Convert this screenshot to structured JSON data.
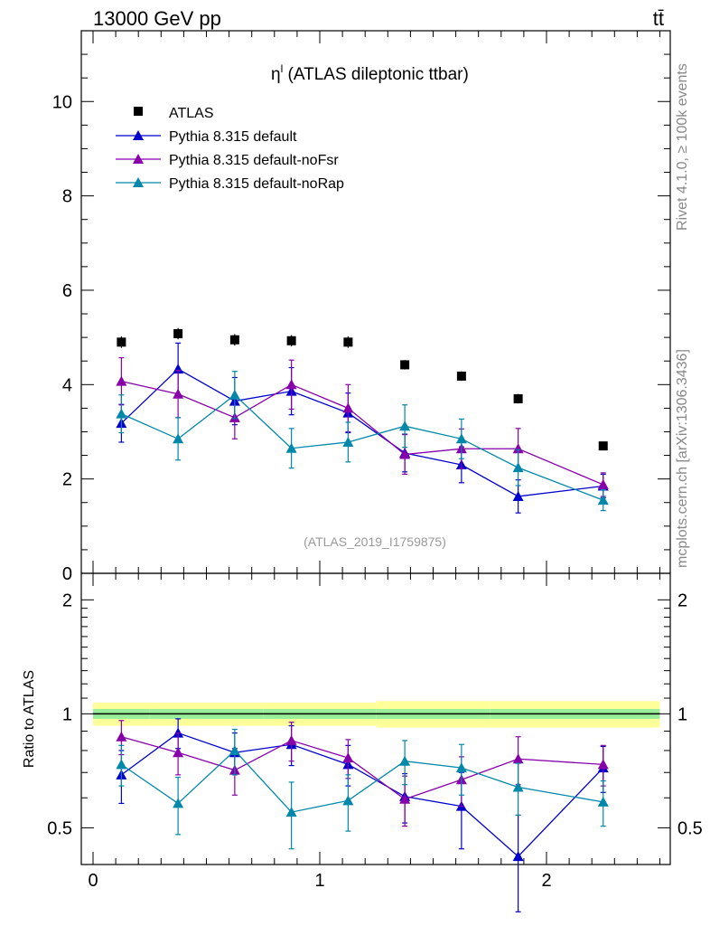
{
  "header": {
    "energy_label": "13000 GeV pp",
    "process_label": "tt̄"
  },
  "side_labels": {
    "rivet": "Rivet 4.1.0, ≥ 100k events",
    "mcplots": "mcplots.cern.ch [arXiv:1306.3436]"
  },
  "chart_data": {
    "type": "scatter",
    "title": "ηˡ (ATLAS dileptonic ttbar)",
    "title_main": "η",
    "title_sup": "l",
    "title_rest": " (ATLAS dileptonic ttbar)",
    "analysis_id": "(ATLAS_2019_I1759875)",
    "xlim": [
      -0.05,
      2.55
    ],
    "ylim": [
      0,
      11.5
    ],
    "xticks": [
      0,
      1,
      2
    ],
    "yticks": [
      0,
      2,
      4,
      6,
      8,
      10
    ],
    "x": [
      0.125,
      0.375,
      0.625,
      0.875,
      1.125,
      1.375,
      1.625,
      1.875,
      2.25
    ],
    "xerr": [
      0.125,
      0.125,
      0.125,
      0.125,
      0.125,
      0.125,
      0.125,
      0.125,
      0.25
    ],
    "legend": [
      "ATLAS",
      "Pythia 8.315 default",
      "Pythia 8.315 default-noFsr",
      "Pythia 8.315 default-noRap"
    ],
    "series": [
      {
        "name": "ATLAS",
        "color": "#000000",
        "marker": "square",
        "values": [
          4.9,
          5.08,
          4.95,
          4.93,
          4.9,
          4.42,
          4.18,
          3.7,
          2.7
        ],
        "err": [
          0.12,
          0.12,
          0.12,
          0.12,
          0.12,
          0.1,
          0.1,
          0.1,
          0.08
        ]
      },
      {
        "name": "Pythia 8.315 default",
        "color": "#0000cc",
        "marker": "triangle",
        "values": [
          3.18,
          4.33,
          3.65,
          3.86,
          3.4,
          2.55,
          2.3,
          1.63,
          1.85
        ],
        "err": [
          0.4,
          0.55,
          0.5,
          0.5,
          0.42,
          0.4,
          0.38,
          0.35,
          0.25
        ]
      },
      {
        "name": "Pythia 8.315 default-noFsr",
        "color": "#8800aa",
        "marker": "triangle",
        "values": [
          4.07,
          3.8,
          3.3,
          4.0,
          3.5,
          2.52,
          2.64,
          2.64,
          1.88
        ],
        "err": [
          0.5,
          0.5,
          0.45,
          0.52,
          0.5,
          0.42,
          0.42,
          0.43,
          0.25
        ]
      },
      {
        "name": "Pythia 8.315 default-noRap",
        "color": "#0088aa",
        "marker": "triangle",
        "values": [
          3.38,
          2.85,
          3.78,
          2.65,
          2.78,
          3.12,
          2.85,
          2.24,
          1.55
        ],
        "err": [
          0.4,
          0.45,
          0.5,
          0.42,
          0.42,
          0.45,
          0.42,
          0.38,
          0.22
        ]
      }
    ],
    "ratio": {
      "ylabel": "Ratio to ATLAS",
      "ylim": [
        0.4,
        2.35
      ],
      "yticks": [
        0.5,
        1,
        2
      ],
      "series": [
        {
          "name": "Pythia 8.315 default",
          "values": [
            0.69,
            0.89,
            0.79,
            0.83,
            0.735,
            0.605,
            0.57,
            0.42,
            0.72
          ],
          "err": [
            0.11,
            0.08,
            0.1,
            0.1,
            0.09,
            0.09,
            0.13,
            0.12,
            0.1
          ]
        },
        {
          "name": "Pythia 8.315 default-noFsr",
          "values": [
            0.87,
            0.79,
            0.71,
            0.85,
            0.765,
            0.595,
            0.67,
            0.76,
            0.735
          ],
          "err": [
            0.09,
            0.1,
            0.1,
            0.1,
            0.09,
            0.09,
            0.1,
            0.11,
            0.09
          ]
        },
        {
          "name": "Pythia 8.315 default-noRap",
          "values": [
            0.735,
            0.58,
            0.8,
            0.55,
            0.59,
            0.75,
            0.72,
            0.64,
            0.585
          ],
          "err": [
            0.09,
            0.1,
            0.11,
            0.11,
            0.1,
            0.1,
            0.11,
            0.1,
            0.08
          ]
        }
      ],
      "band_inner": [
        0.03,
        0.03,
        0.03,
        0.03,
        0.03,
        0.03,
        0.03,
        0.03,
        0.03
      ],
      "band_outer": [
        0.07,
        0.07,
        0.07,
        0.07,
        0.07,
        0.08,
        0.08,
        0.08,
        0.08
      ]
    }
  }
}
